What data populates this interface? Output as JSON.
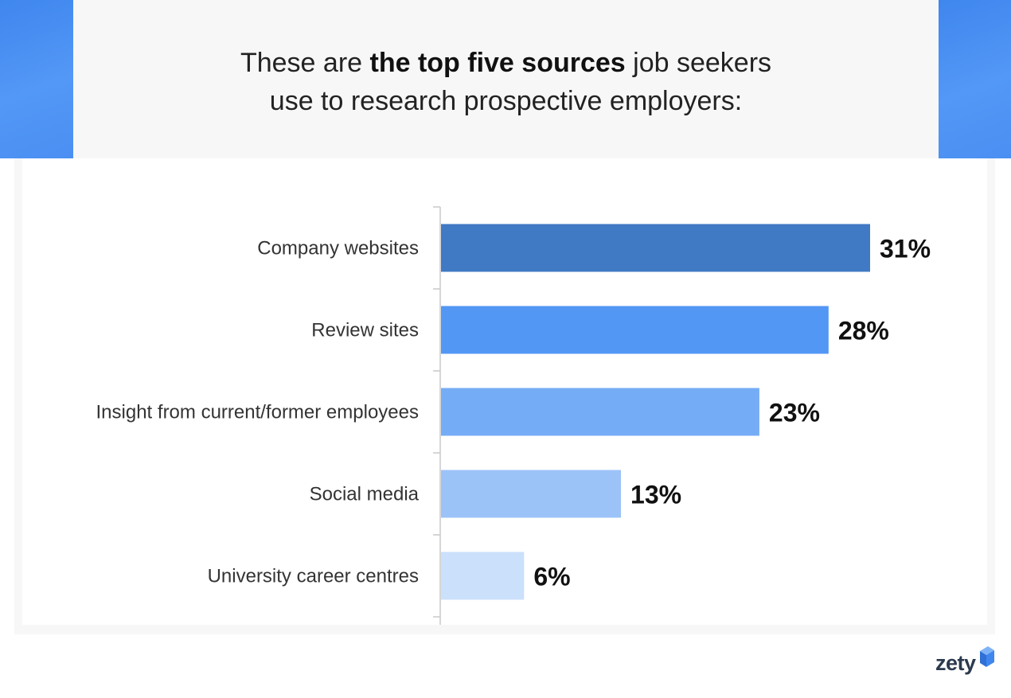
{
  "header": {
    "title_pre": "These are ",
    "title_bold": "the top five sources",
    "title_post_line1": " job seekers",
    "title_line2": "use to research prospective employers:"
  },
  "chart_data": {
    "type": "bar",
    "orientation": "horizontal",
    "categories": [
      "Company websites",
      "Review sites",
      "Insight from current/former employees",
      "Social media",
      "University career centres"
    ],
    "values": [
      31,
      28,
      23,
      13,
      6
    ],
    "value_labels": [
      "31%",
      "28%",
      "23%",
      "13%",
      "6%"
    ],
    "unit": "%",
    "xlim": [
      0,
      31
    ],
    "grid": false,
    "legend": "none",
    "colors": [
      "#4079c4",
      "#5397f4",
      "#75acf6",
      "#9cc3f8",
      "#cbe0fb"
    ]
  },
  "brand": {
    "name": "zety",
    "accent_color": "#3f86ee",
    "icon": "zety-logo-icon"
  }
}
